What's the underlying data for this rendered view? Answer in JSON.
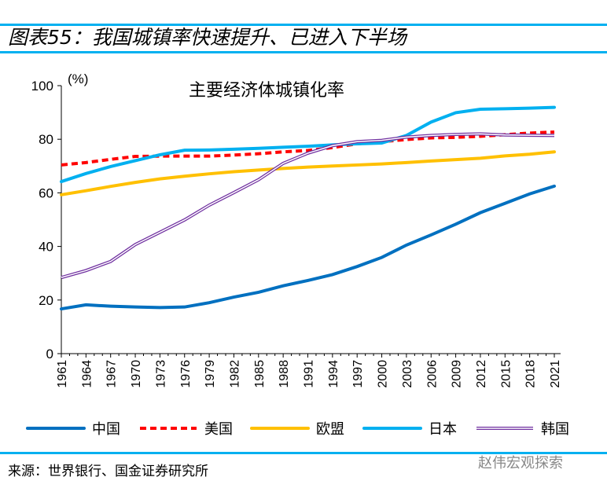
{
  "header": {
    "title": "图表55：我国城镇率快速提升、已进入下半场"
  },
  "footer": {
    "source": "来源：世界银行、国金证券研究所",
    "watermark": "赵伟宏观探索"
  },
  "chart_data": {
    "type": "line",
    "title": "主要经济体城镇化率",
    "ylabel": "(%)",
    "ylim": [
      0,
      100
    ],
    "yticks": [
      0,
      20,
      40,
      60,
      80,
      100
    ],
    "x": [
      1961,
      1964,
      1967,
      1970,
      1973,
      1976,
      1979,
      1982,
      1985,
      1988,
      1991,
      1994,
      1997,
      2000,
      2003,
      2006,
      2009,
      2012,
      2015,
      2018,
      2021
    ],
    "xticks": [
      "1961",
      "1964",
      "1967",
      "1970",
      "1973",
      "1976",
      "1979",
      "1982",
      "1985",
      "1988",
      "1991",
      "1994",
      "1997",
      "2000",
      "2003",
      "2006",
      "2009",
      "2012",
      "2015",
      "2018",
      "2021"
    ],
    "legend": "bottom",
    "grid": false,
    "series": [
      {
        "name": "中国",
        "color": "#0070c0",
        "style": "solid",
        "values": [
          16.7,
          18.2,
          17.7,
          17.4,
          17.2,
          17.4,
          19.0,
          21.1,
          22.9,
          25.3,
          27.3,
          29.5,
          32.5,
          35.9,
          40.5,
          44.3,
          48.3,
          52.6,
          56.1,
          59.6,
          62.5
        ]
      },
      {
        "name": "美国",
        "color": "#ff0000",
        "style": "dashed",
        "values": [
          70.4,
          71.3,
          72.5,
          73.6,
          73.7,
          73.7,
          73.7,
          74.1,
          74.6,
          75.3,
          75.8,
          76.9,
          78.3,
          79.1,
          79.9,
          80.5,
          80.7,
          81.1,
          81.7,
          82.3,
          82.7
        ]
      },
      {
        "name": "欧盟",
        "color": "#ffc000",
        "style": "solid",
        "values": [
          59.3,
          60.8,
          62.4,
          63.9,
          65.2,
          66.2,
          67.1,
          67.9,
          68.5,
          69.1,
          69.6,
          70.0,
          70.4,
          70.8,
          71.3,
          71.9,
          72.4,
          72.9,
          73.8,
          74.4,
          75.3
        ]
      },
      {
        "name": "日本",
        "color": "#00b0f0",
        "style": "solid",
        "values": [
          64.2,
          67.2,
          69.8,
          72.0,
          74.2,
          75.9,
          76.0,
          76.3,
          76.6,
          77.0,
          77.4,
          77.9,
          78.3,
          78.6,
          81.4,
          86.4,
          89.9,
          91.2,
          91.4,
          91.6,
          91.9
        ]
      },
      {
        "name": "韩国",
        "color": "#7030a0",
        "style": "double",
        "values": [
          28.4,
          31.0,
          34.4,
          40.7,
          45.3,
          49.9,
          55.4,
          60.1,
          64.9,
          71.0,
          74.8,
          77.6,
          79.1,
          79.6,
          80.8,
          81.4,
          81.8,
          82.0,
          81.6,
          81.5,
          81.4
        ]
      }
    ]
  }
}
